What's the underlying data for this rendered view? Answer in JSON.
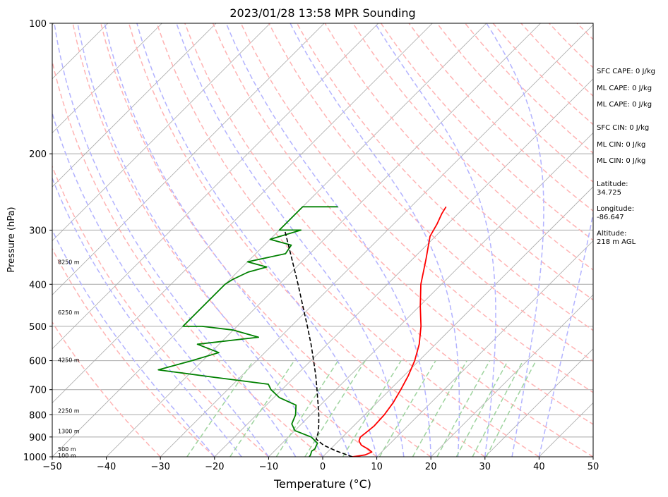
{
  "chart_data": {
    "type": "line",
    "title": "2023/01/28 13:58 MPR Sounding",
    "xlabel": "Temperature (°C)",
    "ylabel": "Pressure (hPa)",
    "xlim": [
      -50,
      50
    ],
    "ylim": [
      1000,
      100
    ],
    "y_scale": "log",
    "x_ticks": [
      "−50",
      "−40",
      "−30",
      "−20",
      "−10",
      "0",
      "10",
      "20",
      "30",
      "40",
      "50"
    ],
    "y_ticks": [
      1000,
      900,
      800,
      700,
      600,
      500,
      400,
      300,
      200,
      100
    ],
    "series": [
      {
        "color": "#ff0000",
        "points": [
          [
            1000,
            5.5
          ],
          [
            990,
            7.5
          ],
          [
            975,
            8.2
          ],
          [
            960,
            7.0
          ],
          [
            940,
            5.0
          ],
          [
            920,
            3.8
          ],
          [
            900,
            3.3
          ],
          [
            880,
            3.5
          ],
          [
            850,
            3.8
          ],
          [
            800,
            3.6
          ],
          [
            750,
            3.0
          ],
          [
            700,
            2.0
          ],
          [
            650,
            0.8
          ],
          [
            600,
            -0.8
          ],
          [
            550,
            -3.0
          ],
          [
            500,
            -6.0
          ],
          [
            450,
            -9.8
          ],
          [
            400,
            -13.8
          ],
          [
            350,
            -17.5
          ],
          [
            310,
            -21.0
          ],
          [
            290,
            -22.0
          ],
          [
            275,
            -23.0
          ],
          [
            265,
            -23.5
          ]
        ]
      },
      {
        "color": "#008000",
        "points": [
          [
            1000,
            -2.5
          ],
          [
            990,
            -2.6
          ],
          [
            970,
            -3.1
          ],
          [
            960,
            -2.9
          ],
          [
            940,
            -3.3
          ],
          [
            930,
            -3.5
          ],
          [
            900,
            -5.8
          ],
          [
            870,
            -10.0
          ],
          [
            840,
            -11.8
          ],
          [
            800,
            -12.8
          ],
          [
            760,
            -14.5
          ],
          [
            730,
            -19.0
          ],
          [
            700,
            -22.0
          ],
          [
            680,
            -23.5
          ],
          [
            655,
            -35.0
          ],
          [
            630,
            -46.5
          ],
          [
            600,
            -42.0
          ],
          [
            575,
            -38.5
          ],
          [
            550,
            -44.0
          ],
          [
            530,
            -34.0
          ],
          [
            510,
            -40.0
          ],
          [
            500,
            -46.5
          ],
          [
            500,
            -50.0
          ],
          [
            400,
            -50.0
          ],
          [
            390,
            -49.5
          ],
          [
            375,
            -48.0
          ],
          [
            365,
            -45.5
          ],
          [
            355,
            -50.0
          ],
          [
            340,
            -44.5
          ],
          [
            325,
            -45.0
          ],
          [
            315,
            -50.0
          ],
          [
            300,
            -46.0
          ],
          [
            300,
            -50.0
          ],
          [
            265,
            -50.0
          ],
          [
            265,
            -43.5
          ]
        ]
      },
      {
        "color": "#000000",
        "dashed": true,
        "points": [
          [
            1000,
            5.5
          ],
          [
            970,
            1.5
          ],
          [
            940,
            -2.0
          ],
          [
            910,
            -4.5
          ],
          [
            880,
            -5.3
          ],
          [
            850,
            -6.4
          ],
          [
            800,
            -8.5
          ],
          [
            750,
            -10.9
          ],
          [
            700,
            -13.5
          ],
          [
            650,
            -16.3
          ],
          [
            600,
            -19.5
          ],
          [
            550,
            -23.0
          ],
          [
            500,
            -27.0
          ],
          [
            450,
            -31.5
          ],
          [
            400,
            -36.5
          ],
          [
            350,
            -42.3
          ],
          [
            300,
            -49.0
          ]
        ]
      }
    ],
    "height_labels": [
      {
        "p": 993,
        "label": "100 m"
      },
      {
        "p": 960,
        "label": "500 m"
      },
      {
        "p": 873,
        "label": "1300 m"
      },
      {
        "p": 783,
        "label": "2250 m"
      },
      {
        "p": 598,
        "label": "4250 m"
      },
      {
        "p": 464,
        "label": "6250 m"
      },
      {
        "p": 355,
        "label": "8250 m"
      }
    ],
    "annotations": [
      "SFC CAPE: 0 J/kg",
      "ML CAPE: 0 J/kg",
      "ML CAPE: 0 J/kg",
      "SFC CIN: 0 J/kg",
      "ML CIN: 0 J/kg",
      "ML CIN: 0 J/kg",
      "Latitude:",
      "34.725",
      "Longitude:",
      "-86.647",
      "Altitude:",
      "218 m AGL"
    ]
  },
  "colors": {
    "temperature": "#ff0000",
    "dewpoint": "#008000",
    "parcel": "#000000",
    "isotherm": "#a9a9a9",
    "dry_adiabat": "#ffb3b3",
    "moist_adiabat": "#b3b3ff",
    "mixing_ratio": "#9fd49f",
    "isobar": "#a9a9a9"
  },
  "grid": true
}
